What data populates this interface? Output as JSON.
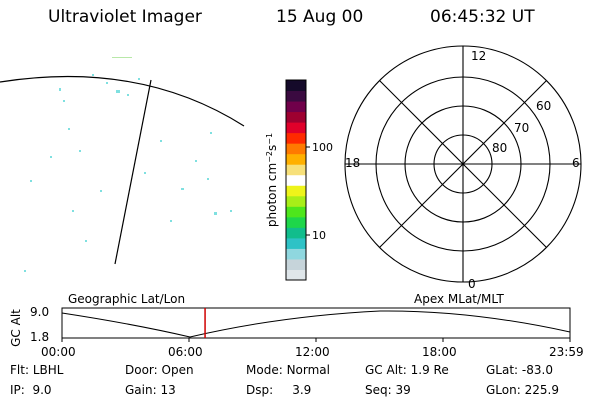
{
  "header": {
    "instrument": "Ultraviolet Imager",
    "date": "15 Aug 00",
    "time": "06:45:32 UT"
  },
  "left_panel": {
    "caption": "Geographic Lat/Lon"
  },
  "colorbar": {
    "unit_label_html": "photon cm<tspan baseline-shift='super' font-size='8'>−2</tspan>s<tspan baseline-shift='super' font-size='8'>−1</tspan>",
    "ticks": [
      {
        "label": "100",
        "value": 100
      },
      {
        "label": "10",
        "value": 10
      }
    ],
    "colors": [
      "#dfe6ea",
      "#c6d4da",
      "#8fd7df",
      "#2ec2c6",
      "#11bd8c",
      "#1ed64a",
      "#4ee61c",
      "#a8ee18",
      "#eef41a",
      "#ffffff",
      "#f7e07a",
      "#ffb000",
      "#ff7a00",
      "#ff2a00",
      "#e0002a",
      "#9e0030",
      "#70004a",
      "#3a0a40",
      "#150a2a"
    ]
  },
  "polar": {
    "caption": "Apex MLat/MLT",
    "mlt_labels": {
      "top": "12",
      "left": "18",
      "right": "6",
      "bottom": "0"
    },
    "lat_labels": [
      "60",
      "70",
      "80"
    ]
  },
  "timeline": {
    "ylabel": "GC Alt",
    "yticks": [
      "9.0",
      "1.8"
    ],
    "xticks": [
      "00:00",
      "06:00",
      "12:00",
      "18:00",
      "23:59"
    ],
    "current_time_hours": 6.759,
    "marker_color": "#d00000"
  },
  "status": [
    [
      {
        "k": "Flt:",
        "v": "LBHL"
      },
      {
        "k": "Door:",
        "v": "Open"
      },
      {
        "k": "Mode:",
        "v": "Normal"
      },
      {
        "k": "GC Alt:",
        "v": "1.9 Re"
      },
      {
        "k": "GLat:",
        "v": "-83.0"
      }
    ],
    [
      {
        "k": "IP:",
        "v": "9.0"
      },
      {
        "k": "Gain:",
        "v": "13"
      },
      {
        "k": "Dsp:",
        "v": "3.9"
      },
      {
        "k": "Seq:",
        "v": "39"
      },
      {
        "k": "GLon:",
        "v": "225.9"
      }
    ]
  ]
}
